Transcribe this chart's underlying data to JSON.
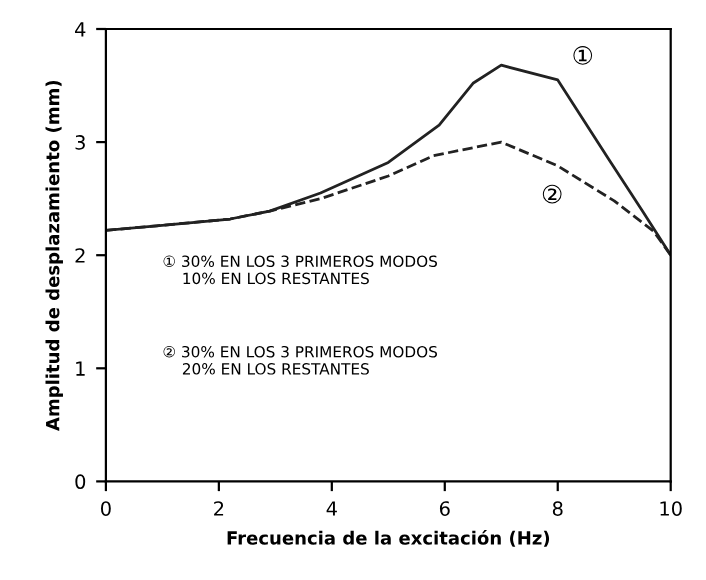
{
  "chart_data": {
    "type": "line",
    "xlabel": "Frecuencia de la excitación (Hz)",
    "ylabel": "Amplitud de desplazamiento (mm)",
    "xlim": [
      0,
      10
    ],
    "ylim": [
      0,
      4
    ],
    "xticks": [
      0,
      2,
      4,
      6,
      8,
      10
    ],
    "yticks": [
      0,
      1,
      2,
      3,
      4
    ],
    "grid": false,
    "marker": "none",
    "series": [
      {
        "x": [
          0,
          0.9,
          2.2,
          2.9,
          3.8,
          5,
          5.9,
          6.5,
          7,
          8,
          8.9,
          9.5,
          10
        ],
        "values": [
          2.22,
          2.26,
          2.32,
          2.39,
          2.55,
          2.82,
          3.15,
          3.52,
          3.68,
          3.55,
          2.85,
          2.39,
          2.0
        ],
        "color": "#222222",
        "line_style": "solid",
        "name": "①"
      },
      {
        "x": [
          0,
          0.9,
          2.2,
          2.9,
          3.8,
          5,
          5.8,
          7,
          8,
          9,
          9.7,
          10
        ],
        "values": [
          2.22,
          2.26,
          2.32,
          2.39,
          2.5,
          2.7,
          2.88,
          3.0,
          2.79,
          2.48,
          2.21,
          2.0
        ],
        "color": "#222222",
        "line_style": "dashed",
        "name": "②"
      }
    ],
    "annotations": [
      "① 30% EN LOS 3 PRIMEROS MODOS\n    10% EN LOS RESTANTES",
      "② 30% EN LOS 3 PRIMEROS MODOS\n    20% EN LOS RESTANTES"
    ]
  }
}
